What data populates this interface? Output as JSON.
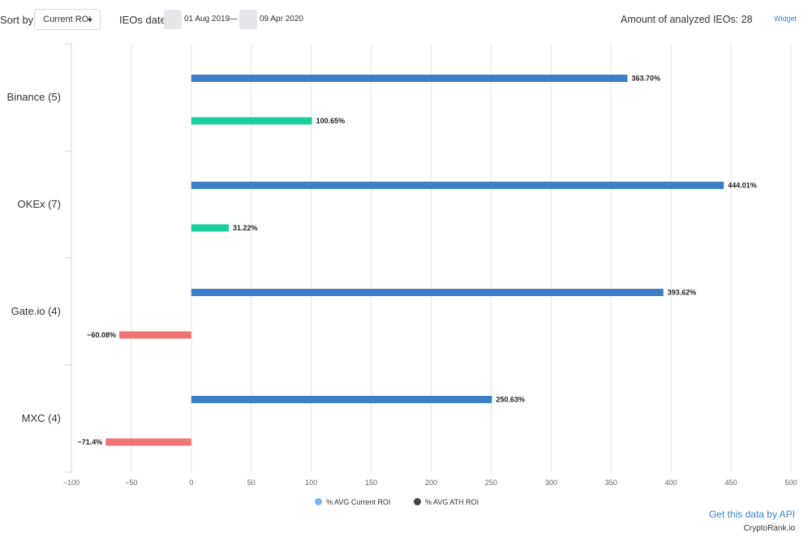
{
  "toolbar": {
    "sort_label": "Sort by",
    "sort_value": "Current ROI",
    "ieos_date_label": "IEOs date",
    "date_from": "01 Aug 2019",
    "date_separator": "—",
    "date_to": "09 Apr 2020",
    "amount_label": "Amount of analyzed IEOs: 28",
    "widget_link": "Widget"
  },
  "footer": {
    "api_link": "Get this data by API",
    "credit": "CryptoRank.io"
  },
  "colors": {
    "current_roi": "#3d7fc6",
    "ath_positive": "#1ccf9f",
    "ath_negative": "#ef7474",
    "legend_current": "#7cb5ec",
    "legend_ath": "#434348",
    "grid": "#e6e6e6",
    "link": "#3a84c9"
  },
  "chart_data": {
    "type": "bar",
    "orientation": "horizontal",
    "categories": [
      "Binance (5)",
      "OKEx (7)",
      "Gate.io (4)",
      "MXC (4)"
    ],
    "series": [
      {
        "name": "% AVG Current ROI",
        "values": [
          363.7,
          444.01,
          393.62,
          250.63
        ],
        "labels": [
          "363.70%",
          "444.01%",
          "393.62%",
          "250.63%"
        ]
      },
      {
        "name": "% AVG ATH ROI",
        "values": [
          100.65,
          31.22,
          -60.08,
          -71.4
        ],
        "labels": [
          "100.65%",
          "31.22%",
          "−60.08%",
          "−71.4%"
        ]
      }
    ],
    "xlim": [
      -100,
      500
    ],
    "x_ticks": [
      -100,
      -50,
      0,
      50,
      100,
      150,
      200,
      250,
      300,
      350,
      400,
      450,
      500
    ],
    "x_tick_labels": [
      "−100",
      "−50",
      "0",
      "50",
      "100",
      "150",
      "200",
      "250",
      "300",
      "350",
      "400",
      "450",
      "500"
    ],
    "grid": true,
    "legend_position": "bottom-center"
  }
}
